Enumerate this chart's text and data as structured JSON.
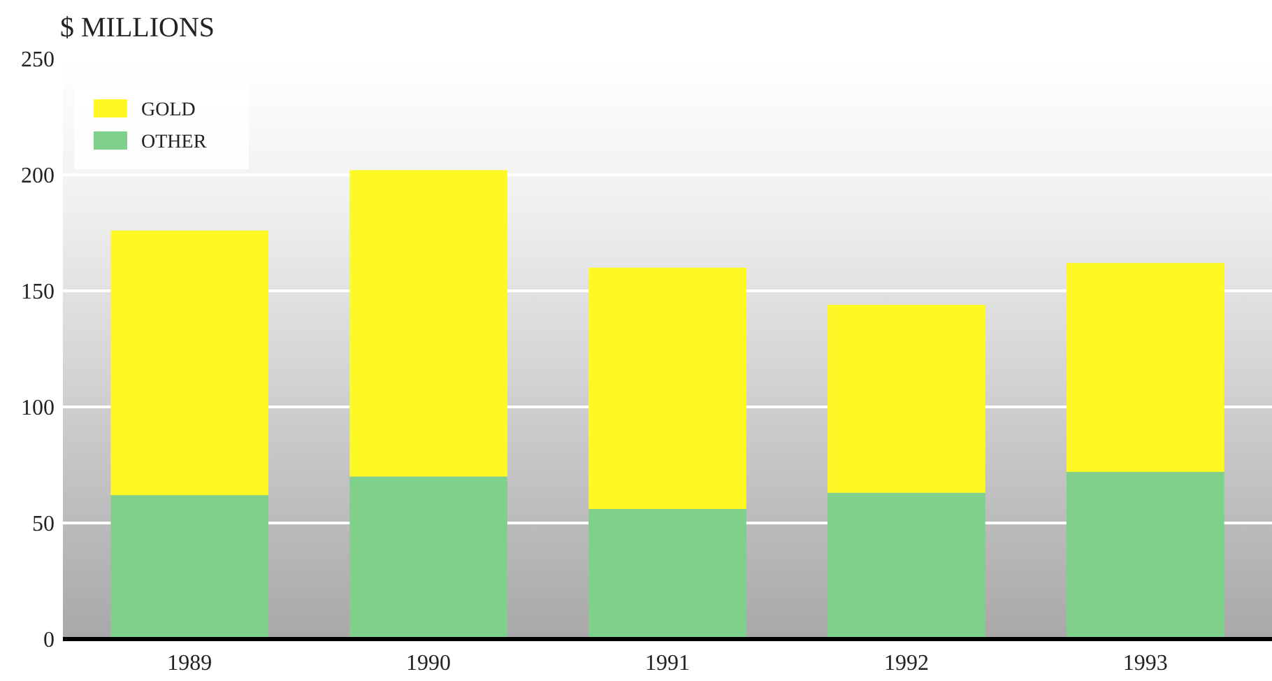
{
  "chart_data": {
    "type": "bar",
    "ylabel": "$ MILLIONS",
    "categories": [
      "1989",
      "1990",
      "1991",
      "1992",
      "1993"
    ],
    "stacked": true,
    "series": [
      {
        "name": "OTHER",
        "color": "#7fd08a",
        "values": [
          62,
          70,
          56,
          63,
          72
        ]
      },
      {
        "name": "GOLD",
        "color": "#fef824",
        "values": [
          114,
          132,
          104,
          81,
          90
        ]
      }
    ],
    "ylim": [
      0,
      250
    ],
    "yticks": [
      0,
      50,
      100,
      150,
      200,
      250
    ],
    "grid": "y",
    "legend": "top left"
  }
}
